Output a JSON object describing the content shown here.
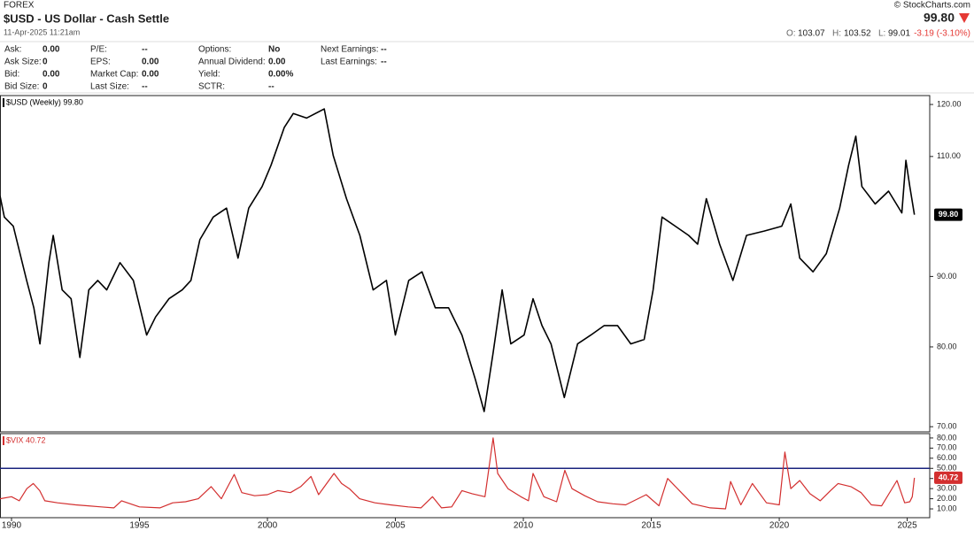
{
  "header": {
    "exchange": "FOREX",
    "title": "$USD - US Dollar - Cash Settle",
    "timestamp": "11-Apr-2025 11:21am",
    "copyright": "© StockCharts.com",
    "last": "99.80",
    "open_label": "O:",
    "open": "103.07",
    "high_label": "H:",
    "high": "103.52",
    "low_label": "L:",
    "low": "99.01",
    "change": "-3.19 (-3.10%)"
  },
  "quote_table": [
    [
      [
        "Ask:",
        "0.00"
      ],
      [
        "Ask Size:",
        "0"
      ],
      [
        "Bid:",
        "0.00"
      ],
      [
        "Bid Size:",
        "0"
      ]
    ],
    [
      [
        "P/E:",
        "--"
      ],
      [
        "EPS:",
        "0.00"
      ],
      [
        "Market Cap:",
        "0.00"
      ],
      [
        "Last Size:",
        "--"
      ]
    ],
    [
      [
        "Options:",
        "No"
      ],
      [
        "Annual Dividend:",
        "0.00"
      ],
      [
        "Yield:",
        "0.00%"
      ],
      [
        "SCTR:",
        "--"
      ]
    ],
    [
      [
        "Next Earnings:",
        "--"
      ],
      [
        "Last Earnings:",
        "--"
      ]
    ]
  ],
  "chart_data": [
    {
      "type": "line",
      "label": "$USD (Weekly) 99.80",
      "last_label": "99.80",
      "color": "#000000",
      "tag_color": "#000000",
      "log_scale": true,
      "xlim": [
        1989.55,
        2025.88
      ],
      "ylim": [
        69.4,
        121.8
      ],
      "yticks": [
        {
          "value": 70,
          "label": "70.00"
        },
        {
          "value": 80,
          "label": "80.00"
        },
        {
          "value": 90,
          "label": "90.00"
        },
        {
          "value": 110,
          "label": "110.00"
        },
        {
          "value": 120,
          "label": "120.00"
        }
      ],
      "x": [
        1989.55,
        1989.72,
        1990.07,
        1990.59,
        1990.87,
        1991.11,
        1991.46,
        1991.63,
        1991.98,
        1992.33,
        1992.67,
        1993.02,
        1993.37,
        1993.72,
        1994.24,
        1994.76,
        1995.28,
        1995.63,
        1996.15,
        1996.67,
        1997.01,
        1997.36,
        1997.88,
        1998.4,
        1998.85,
        1999.27,
        1999.79,
        2000.14,
        2000.66,
        2001.01,
        2001.53,
        2002.22,
        2002.57,
        2003.09,
        2003.61,
        2004.13,
        2004.65,
        2005.0,
        2005.52,
        2006.04,
        2006.56,
        2007.08,
        2007.6,
        2008.13,
        2008.47,
        2008.82,
        2009.17,
        2009.51,
        2010.03,
        2010.38,
        2010.73,
        2011.08,
        2011.6,
        2012.12,
        2012.64,
        2013.16,
        2013.68,
        2014.2,
        2014.72,
        2015.07,
        2015.42,
        2015.94,
        2016.46,
        2016.81,
        2017.15,
        2017.67,
        2018.19,
        2018.72,
        2019.41,
        2020.1,
        2020.45,
        2020.8,
        2021.32,
        2021.84,
        2022.36,
        2022.71,
        2022.99,
        2023.23,
        2023.75,
        2024.27,
        2024.79,
        2024.95,
        2025.1,
        2025.28
      ],
      "values": [
        103.0,
        99.4,
        97.9,
        89.4,
        85.4,
        80.4,
        92.1,
        96.4,
        88.0,
        86.7,
        78.6,
        88.0,
        89.4,
        88.0,
        92.1,
        89.4,
        81.6,
        84.1,
        86.7,
        88.0,
        89.4,
        95.7,
        99.4,
        100.9,
        92.8,
        100.9,
        104.6,
        108.4,
        115.5,
        118.2,
        117.3,
        119.1,
        110.2,
        102.5,
        96.4,
        88.0,
        89.4,
        81.6,
        89.4,
        90.7,
        85.4,
        85.4,
        81.6,
        75.7,
        71.8,
        79.2,
        88.0,
        80.4,
        81.6,
        86.7,
        82.9,
        80.4,
        73.5,
        80.4,
        81.6,
        82.9,
        82.9,
        80.4,
        81.0,
        88.0,
        99.4,
        97.9,
        96.4,
        95.0,
        102.5,
        95.0,
        89.4,
        96.4,
        97.1,
        97.9,
        101.6,
        92.8,
        90.7,
        93.5,
        100.9,
        108.4,
        113.8,
        104.6,
        101.6,
        103.8,
        100.1,
        109.3,
        104.6,
        99.8
      ]
    },
    {
      "type": "line",
      "label": "$VIX 40.72",
      "last_label": "40.72",
      "color": "#d32f2f",
      "tag_color": "#d32f2f",
      "log_scale": false,
      "hline": 50,
      "hline_color": "#1a237e",
      "xlim": [
        1989.55,
        2025.88
      ],
      "xticks": [
        1990,
        1995,
        2000,
        2005,
        2010,
        2015,
        2020,
        2025
      ],
      "ylim": [
        1.3,
        84.3
      ],
      "yticks": [
        {
          "value": 10,
          "label": "10.00"
        },
        {
          "value": 20,
          "label": "20.00"
        },
        {
          "value": 30,
          "label": "30.00"
        },
        {
          "value": 40,
          "label": "40.00"
        },
        {
          "value": 50,
          "label": "50.00"
        },
        {
          "value": 60,
          "label": "60.00"
        },
        {
          "value": 70,
          "label": "70.00"
        },
        {
          "value": 80,
          "label": "80.00"
        }
      ],
      "x": [
        1989.55,
        1990.0,
        1990.3,
        1990.6,
        1990.85,
        1991.1,
        1991.3,
        1991.8,
        1992.5,
        1993.0,
        1993.5,
        1994.0,
        1994.3,
        1995.0,
        1995.8,
        1996.3,
        1996.8,
        1997.3,
        1997.8,
        1998.2,
        1998.7,
        1999.0,
        1999.5,
        2000.0,
        2000.4,
        2000.9,
        2001.3,
        2001.7,
        2002.0,
        2002.6,
        2002.9,
        2003.2,
        2003.6,
        2004.2,
        2004.8,
        2005.5,
        2006.0,
        2006.45,
        2006.8,
        2007.2,
        2007.6,
        2008.0,
        2008.5,
        2008.82,
        2009.0,
        2009.4,
        2009.9,
        2010.2,
        2010.38,
        2010.8,
        2011.3,
        2011.62,
        2011.9,
        2012.4,
        2012.9,
        2013.5,
        2014.0,
        2014.8,
        2015.3,
        2015.64,
        2016.1,
        2016.6,
        2017.3,
        2017.9,
        2018.1,
        2018.5,
        2018.95,
        2019.5,
        2020.0,
        2020.22,
        2020.45,
        2020.8,
        2021.2,
        2021.6,
        2022.0,
        2022.3,
        2022.8,
        2023.2,
        2023.6,
        2024.0,
        2024.6,
        2024.9,
        2025.1,
        2025.2,
        2025.28
      ],
      "values": [
        20,
        22,
        18,
        30,
        35,
        28,
        18,
        16,
        14,
        13,
        12,
        11,
        18,
        12,
        11,
        16,
        17,
        20,
        32,
        20,
        44,
        26,
        23,
        24,
        28,
        26,
        32,
        42,
        24,
        45,
        35,
        30,
        20,
        16,
        14,
        12,
        11,
        22,
        11,
        12,
        28,
        25,
        22,
        80,
        45,
        30,
        22,
        18,
        45,
        22,
        17,
        48,
        30,
        23,
        17,
        15,
        14,
        24,
        13,
        40,
        28,
        15,
        11,
        10,
        37,
        14,
        35,
        16,
        14,
        66,
        30,
        38,
        25,
        18,
        28,
        35,
        32,
        26,
        14,
        13,
        38,
        16,
        17,
        22,
        40.72
      ]
    }
  ]
}
